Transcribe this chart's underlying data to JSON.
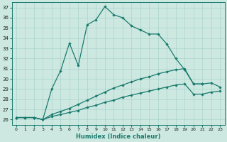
{
  "xlabel": "Humidex (Indice chaleur)",
  "xlim": [
    -0.5,
    23.5
  ],
  "ylim": [
    25.5,
    37.5
  ],
  "xticks": [
    0,
    1,
    2,
    3,
    4,
    5,
    6,
    7,
    8,
    9,
    10,
    11,
    12,
    13,
    14,
    15,
    16,
    17,
    18,
    19,
    20,
    21,
    22,
    23
  ],
  "yticks": [
    26,
    27,
    28,
    29,
    30,
    31,
    32,
    33,
    34,
    35,
    36,
    37
  ],
  "bg_color": "#cce8e0",
  "line_color": "#1a7a6e",
  "grid_color": "#aad4cc",
  "lines": [
    {
      "x": [
        0,
        1,
        2,
        3,
        4,
        5,
        6,
        7,
        8,
        9,
        10,
        11,
        12,
        13,
        14,
        15,
        16,
        17,
        18,
        19,
        20,
        21
      ],
      "y": [
        26.2,
        26.2,
        26.2,
        26.0,
        29.0,
        30.8,
        33.5,
        31.3,
        35.3,
        35.8,
        37.1,
        36.3,
        36.0,
        35.2,
        34.8,
        34.4,
        34.4,
        33.4,
        32.0,
        30.9,
        29.5,
        29.5
      ]
    },
    {
      "x": [
        0,
        1,
        2,
        3,
        4,
        5,
        6,
        7,
        8,
        9,
        10,
        11,
        12,
        13,
        14,
        15,
        16,
        17,
        18,
        19,
        20,
        21,
        22,
        23
      ],
      "y": [
        26.2,
        26.2,
        26.2,
        26.0,
        26.5,
        26.8,
        27.1,
        27.5,
        27.9,
        28.3,
        28.7,
        29.1,
        29.4,
        29.7,
        30.0,
        30.2,
        30.5,
        30.7,
        30.9,
        31.0,
        29.5,
        29.5,
        29.6,
        29.2
      ]
    },
    {
      "x": [
        0,
        1,
        2,
        3,
        4,
        5,
        6,
        7,
        8,
        9,
        10,
        11,
        12,
        13,
        14,
        15,
        16,
        17,
        18,
        19,
        20,
        21,
        22,
        23
      ],
      "y": [
        26.2,
        26.2,
        26.2,
        26.0,
        26.3,
        26.5,
        26.7,
        26.9,
        27.2,
        27.4,
        27.7,
        27.9,
        28.2,
        28.4,
        28.6,
        28.8,
        29.0,
        29.2,
        29.4,
        29.5,
        28.5,
        28.5,
        28.7,
        28.8
      ]
    }
  ]
}
